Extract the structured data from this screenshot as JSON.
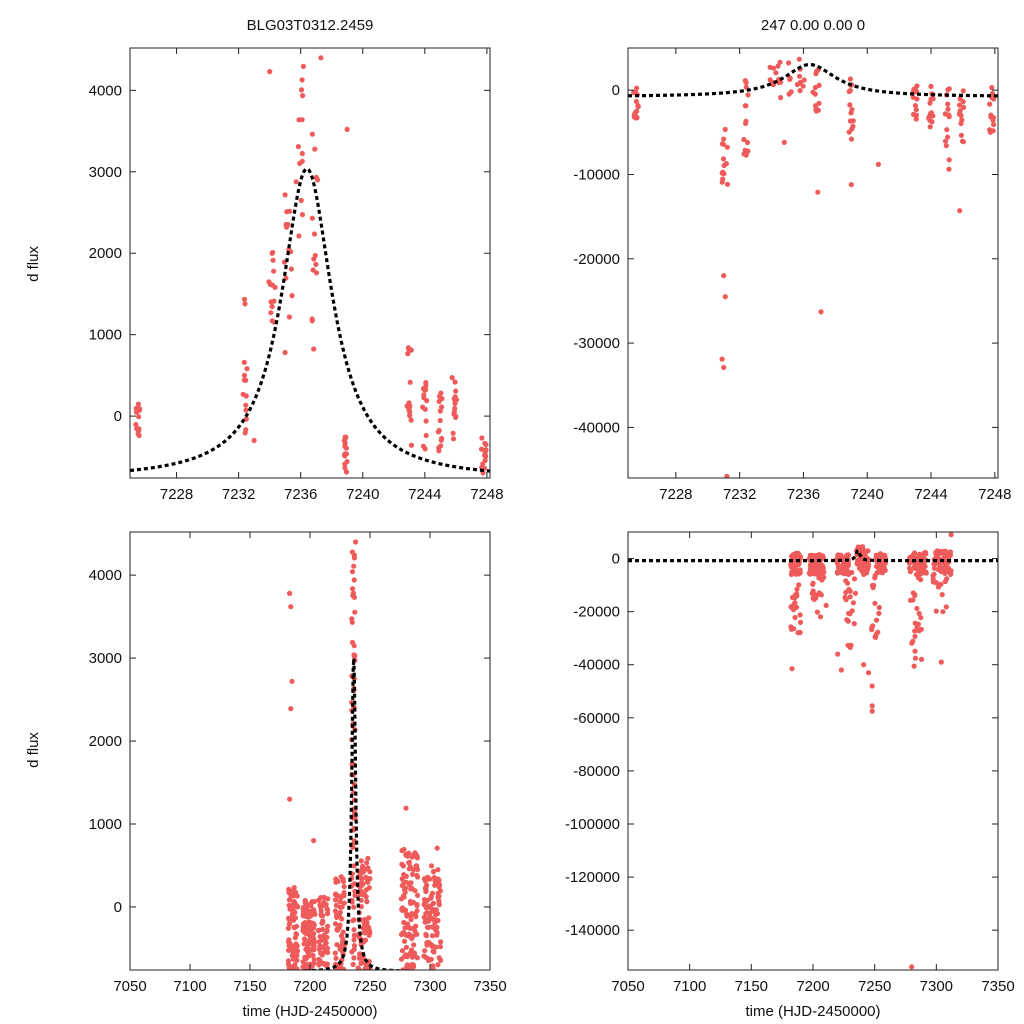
{
  "figure": {
    "title_left": "BLG03T0312.2459",
    "title_right": "247  0.00  0.00  0"
  },
  "colors": {
    "points": "#ef5b5b",
    "model": "#000000",
    "axes": "#222222"
  },
  "model_params": {
    "t0": 7236.4,
    "tE": 1.9,
    "u0": 0.3,
    "baseline": -780,
    "amplitude": 4160
  },
  "chart_data": [
    {
      "type": "scatter",
      "panel": "top-left",
      "title": "BLG03T0312.2459",
      "xlabel": "",
      "ylabel": "d flux",
      "xlim": [
        7225,
        7248.2
      ],
      "ylim": [
        -760,
        4520
      ],
      "xticks": [
        7228,
        7232,
        7236,
        7240,
        7244,
        7248
      ],
      "yticks": [
        0,
        1000,
        2000,
        3000,
        4000
      ],
      "series": [
        {
          "name": "data",
          "groups": [
            {
              "x": 7225.5,
              "w": 0.3,
              "y": [
                -330,
                150
              ]
            },
            {
              "x": 7232.4,
              "w": 0.3,
              "y": [
                -400,
                1700
              ]
            },
            {
              "x": 7234.2,
              "w": 0.5,
              "y": [
                1150,
                2050
              ]
            },
            {
              "x": 7235.2,
              "w": 0.5,
              "y": [
                100,
                2900
              ]
            },
            {
              "x": 7236.0,
              "w": 0.6,
              "y": [
                2200,
                4300
              ]
            },
            {
              "x": 7236.9,
              "w": 0.4,
              "y": [
                800,
                3800
              ]
            },
            {
              "x": 7238.9,
              "w": 0.2,
              "y": [
                -700,
                -250
              ]
            },
            {
              "x": 7243.0,
              "w": 0.3,
              "y": [
                -400,
                900
              ]
            },
            {
              "x": 7244.0,
              "w": 0.3,
              "y": [
                -480,
                420
              ]
            },
            {
              "x": 7245.0,
              "w": 0.3,
              "y": [
                -460,
                360
              ]
            },
            {
              "x": 7245.9,
              "w": 0.3,
              "y": [
                -380,
                480
              ]
            },
            {
              "x": 7247.8,
              "w": 0.3,
              "y": [
                -700,
                -260
              ]
            }
          ],
          "extra": [
            [
              7234.0,
              4230
            ],
            [
              7237.3,
              4400
            ],
            [
              7239.0,
              3520
            ],
            [
              7233.0,
              -300
            ]
          ]
        },
        {
          "name": "model",
          "style": "dashed"
        }
      ]
    },
    {
      "type": "scatter",
      "panel": "top-right",
      "title": "247  0.00  0.00  0",
      "xlabel": "",
      "ylabel": "",
      "xlim": [
        7225,
        7248.2
      ],
      "ylim": [
        -46000,
        5000
      ],
      "xticks": [
        7228,
        7232,
        7236,
        7240,
        7244,
        7248
      ],
      "yticks": [
        0,
        -10000,
        -20000,
        -30000,
        -40000
      ],
      "series": [
        {
          "name": "data",
          "groups": [
            {
              "x": 7225.5,
              "w": 0.3,
              "y": [
                -3500,
                300
              ]
            },
            {
              "x": 7231.1,
              "w": 0.4,
              "y": [
                -12000,
                -4000
              ]
            },
            {
              "x": 7232.4,
              "w": 0.3,
              "y": [
                -8000,
                1500
              ]
            },
            {
              "x": 7234.2,
              "w": 0.8,
              "y": [
                -1500,
                3500
              ]
            },
            {
              "x": 7235.5,
              "w": 1.2,
              "y": [
                -500,
                4000
              ]
            },
            {
              "x": 7236.8,
              "w": 0.4,
              "y": [
                -2500,
                3500
              ]
            },
            {
              "x": 7239.0,
              "w": 0.3,
              "y": [
                -6000,
                1500
              ]
            },
            {
              "x": 7243.0,
              "w": 0.3,
              "y": [
                -3500,
                500
              ]
            },
            {
              "x": 7244.0,
              "w": 0.3,
              "y": [
                -5000,
                500
              ]
            },
            {
              "x": 7245.0,
              "w": 0.3,
              "y": [
                -9500,
                500
              ]
            },
            {
              "x": 7245.9,
              "w": 0.3,
              "y": [
                -6500,
                500
              ]
            },
            {
              "x": 7247.8,
              "w": 0.3,
              "y": [
                -5500,
                500
              ]
            }
          ],
          "extra": [
            [
              7231.0,
              -22000
            ],
            [
              7231.1,
              -24500
            ],
            [
              7230.9,
              -31900
            ],
            [
              7231.0,
              -32900
            ],
            [
              7231.2,
              -45800
            ],
            [
              7237.1,
              -26300
            ],
            [
              7236.9,
              -12100
            ],
            [
              7239.0,
              -11200
            ],
            [
              7240.7,
              -8800
            ],
            [
              7245.8,
              -14300
            ],
            [
              7234.8,
              -6200
            ]
          ]
        },
        {
          "name": "model",
          "style": "dashed"
        }
      ]
    },
    {
      "type": "scatter",
      "panel": "bottom-left",
      "title": "",
      "xlabel": "time (HJD-2450000)",
      "ylabel": "d flux",
      "xlim": [
        7050,
        7350
      ],
      "ylim": [
        -760,
        4520
      ],
      "xticks": [
        7050,
        7100,
        7150,
        7200,
        7250,
        7300,
        7350
      ],
      "yticks": [
        0,
        1000,
        2000,
        3000,
        4000
      ],
      "series": [
        {
          "name": "data",
          "groups": [
            {
              "x": 7186,
              "w": 8,
              "y": [
                -760,
                300
              ],
              "n": 70
            },
            {
              "x": 7199,
              "w": 10,
              "y": [
                -760,
                100
              ],
              "n": 110
            },
            {
              "x": 7211,
              "w": 8,
              "y": [
                -760,
                150
              ],
              "n": 60
            },
            {
              "x": 7225,
              "w": 8,
              "y": [
                -760,
                400
              ],
              "n": 60
            },
            {
              "x": 7236,
              "w": 3,
              "y": [
                -700,
                4300
              ],
              "n": 70
            },
            {
              "x": 7245,
              "w": 10,
              "y": [
                -760,
                600
              ],
              "n": 90
            },
            {
              "x": 7283,
              "w": 14,
              "y": [
                -760,
                700
              ],
              "n": 110
            },
            {
              "x": 7302,
              "w": 14,
              "y": [
                -760,
                500
              ],
              "n": 100
            }
          ],
          "extra": [
            [
              7183,
              3780
            ],
            [
              7184,
              3620
            ],
            [
              7185,
              2720
            ],
            [
              7184,
              2390
            ],
            [
              7183,
              1300
            ],
            [
              7203,
              800
            ],
            [
              7280,
              1190
            ],
            [
              7306,
              710
            ],
            [
              7238,
              4400
            ],
            [
              7237,
              4240
            ]
          ]
        },
        {
          "name": "model",
          "style": "dashed"
        }
      ]
    },
    {
      "type": "scatter",
      "panel": "bottom-right",
      "title": "",
      "xlabel": "time (HJD-2450000)",
      "ylabel": "",
      "xlim": [
        7050,
        7350
      ],
      "ylim": [
        -155000,
        10000
      ],
      "xticks": [
        7050,
        7100,
        7150,
        7200,
        7250,
        7300,
        7350
      ],
      "yticks": [
        0,
        -20000,
        -40000,
        -60000,
        -80000,
        -100000,
        -120000,
        -140000
      ],
      "series": [
        {
          "name": "data",
          "groups": [
            {
              "x": 7186,
              "w": 8,
              "y": [
                -6000,
                2000
              ],
              "n": 60
            },
            {
              "x": 7203,
              "w": 12,
              "y": [
                -6000,
                1500
              ],
              "n": 70
            },
            {
              "x": 7224,
              "w": 10,
              "y": [
                -6000,
                1500
              ],
              "n": 50
            },
            {
              "x": 7240,
              "w": 10,
              "y": [
                -6000,
                4500
              ],
              "n": 60
            },
            {
              "x": 7255,
              "w": 8,
              "y": [
                -6000,
                2000
              ],
              "n": 40
            },
            {
              "x": 7285,
              "w": 14,
              "y": [
                -6000,
                2500
              ],
              "n": 60
            },
            {
              "x": 7305,
              "w": 14,
              "y": [
                -6000,
                3000
              ],
              "n": 60
            },
            {
              "x": 7186,
              "w": 8,
              "y": [
                -28000,
                -5000
              ],
              "n": 22
            },
            {
              "x": 7205,
              "w": 12,
              "y": [
                -22000,
                -5000
              ],
              "n": 18
            },
            {
              "x": 7230,
              "w": 10,
              "y": [
                -35000,
                -5000
              ],
              "n": 22
            },
            {
              "x": 7250,
              "w": 8,
              "y": [
                -30000,
                -5000
              ],
              "n": 16
            },
            {
              "x": 7283,
              "w": 10,
              "y": [
                -38000,
                -5000
              ],
              "n": 22
            },
            {
              "x": 7303,
              "w": 12,
              "y": [
                -22000,
                -5000
              ],
              "n": 14
            }
          ],
          "extra": [
            [
              7183,
              -41500
            ],
            [
              7220,
              -36000
            ],
            [
              7245,
              -43000
            ],
            [
              7248,
              -48000
            ],
            [
              7248,
              -55500
            ],
            [
              7248,
              -57500
            ],
            [
              7282,
              -40500
            ],
            [
              7288,
              -38000
            ],
            [
              7304,
              -39000
            ],
            [
              7312,
              9000
            ],
            [
              7280,
              -153800
            ],
            [
              7241,
              -40000
            ],
            [
              7223,
              -42000
            ]
          ]
        },
        {
          "name": "model",
          "style": "dashed"
        }
      ]
    }
  ]
}
